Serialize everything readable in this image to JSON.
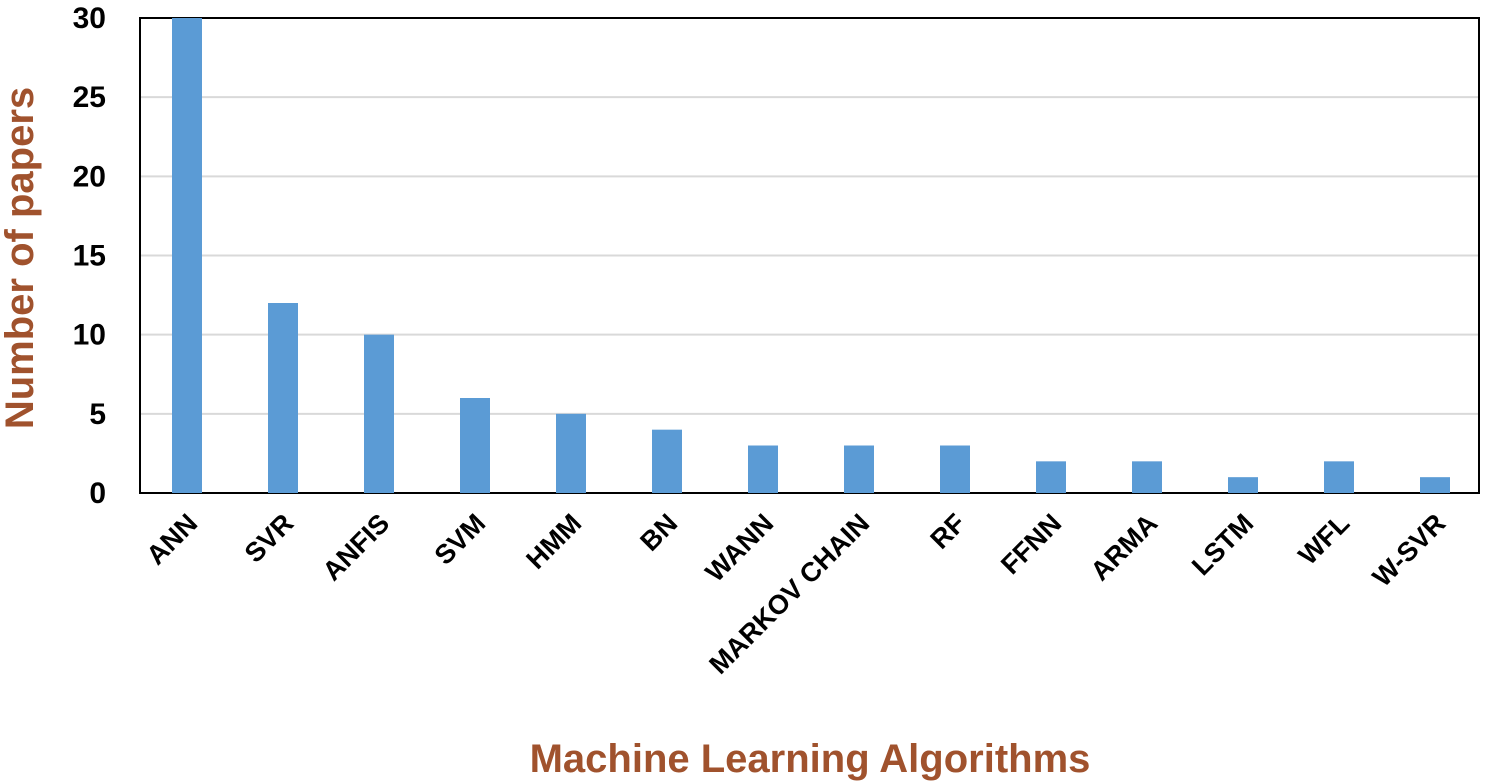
{
  "chart_data": {
    "type": "bar",
    "categories": [
      "ANN",
      "SVR",
      "ANFIS",
      "SVM",
      "HMM",
      "BN",
      "WANN",
      "MARKOV CHAIN",
      "RF",
      "FFNN",
      "ARMA",
      "LSTM",
      "WFL",
      "W-SVR"
    ],
    "values": [
      30,
      12,
      10,
      6,
      5,
      4,
      3,
      3,
      3,
      2,
      2,
      1,
      2,
      1
    ],
    "title": "",
    "xlabel": "Machine Learning Algorithms",
    "ylabel": "Number of papers",
    "ylim": [
      0,
      30
    ],
    "yticks": [
      "0",
      "5",
      "10",
      "15",
      "20",
      "25",
      "30"
    ],
    "grid": true,
    "legend": "none"
  },
  "colors": {
    "bar": "#5b9bd5",
    "axis_title": "#a0522d",
    "grid": "#d9d9d9",
    "frame": "#000000"
  }
}
